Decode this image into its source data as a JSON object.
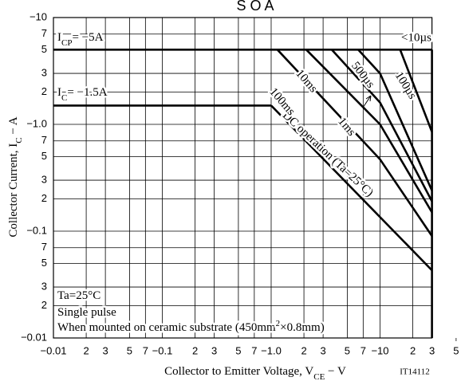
{
  "chart_data": {
    "type": "line",
    "title": "S O A",
    "x_label": [
      "Collector to Emitter Voltage, V",
      "CE",
      " − V"
    ],
    "y_label": [
      "Collector Current, I",
      "C",
      " − A"
    ],
    "code": "IT14112",
    "log_x": true,
    "log_y": true,
    "grid": true,
    "color": "#000000",
    "xlim": [
      0.01,
      30
    ],
    "ylim": [
      0.01,
      10
    ],
    "xticks": [
      {
        "value": 0.01,
        "label": "−0.01"
      },
      {
        "value": 0.02,
        "label": "2"
      },
      {
        "value": 0.03,
        "label": "3"
      },
      {
        "value": 0.05,
        "label": "5"
      },
      {
        "value": 0.07,
        "label": "7"
      },
      {
        "value": 0.1,
        "label": "−0.1"
      },
      {
        "value": 0.2,
        "label": "2"
      },
      {
        "value": 0.3,
        "label": "3"
      },
      {
        "value": 0.5,
        "label": "5"
      },
      {
        "value": 0.7,
        "label": "7"
      },
      {
        "value": 1,
        "label": "−1.0"
      },
      2,
      3,
      5,
      7,
      {
        "value": 10,
        "label": "−10"
      },
      {
        "value": 20,
        "label": "2"
      },
      {
        "value": 30,
        "label": "3"
      },
      {
        "value": 50,
        "label": "5"
      }
    ],
    "yticks": [
      {
        "value": 10,
        "label": "−10"
      },
      7,
      5,
      3,
      2,
      {
        "value": 1,
        "label": "−1.0"
      },
      {
        "value": 0.7,
        "label": "7"
      },
      {
        "value": 0.5,
        "label": "5"
      },
      {
        "value": 0.3,
        "label": "3"
      },
      {
        "value": 0.2,
        "label": "2"
      },
      {
        "value": 0.1,
        "label": "−0.1"
      },
      {
        "value": 0.07,
        "label": "7"
      },
      {
        "value": 0.05,
        "label": "5"
      },
      {
        "value": 0.03,
        "label": "3"
      },
      {
        "value": 0.02,
        "label": "2"
      },
      {
        "value": 0.01,
        "label": "−0.01"
      }
    ],
    "annotations": [
      [
        "Ta=25°C"
      ],
      [
        "Single pulse"
      ],
      [
        "When mounted on ceramic substrate (450mm",
        "2",
        "×0.8mm)"
      ]
    ],
    "series": [
      {
        "name": "<10µs",
        "x": [
          30,
          30
        ],
        "values": [
          5,
          0.01
        ]
      },
      {
        "label": [
          "I",
          "CP",
          "= −5A"
        ],
        "x": [
          0.01,
          30
        ],
        "values": [
          5,
          5
        ]
      },
      {
        "label": [
          "I",
          "C",
          "= −1.5A"
        ],
        "x": [
          0.01,
          1.0
        ],
        "values": [
          1.5,
          1.5
        ]
      },
      {
        "name": "DC operation (Ta=25°C)",
        "x": [
          1.0,
          30
        ],
        "values": [
          1.5,
          0.043
        ]
      },
      {
        "name": "100ms",
        "x": [
          1.14,
          10,
          30
        ],
        "values": [
          5,
          0.47,
          0.09
        ]
      },
      {
        "name": "10ms",
        "x": [
          2.1,
          10,
          30
        ],
        "values": [
          5,
          1.0,
          0.15
        ]
      },
      {
        "name": "1ms",
        "x": [
          3.6,
          10,
          30
        ],
        "values": [
          5,
          1.6,
          0.19
        ]
      },
      {
        "name": "500µs",
        "x": [
          6.3,
          10,
          30
        ],
        "values": [
          5,
          3.0,
          0.24
        ]
      },
      {
        "name": "100µs",
        "x": [
          15.3,
          30
        ],
        "values": [
          5,
          0.85
        ]
      }
    ]
  }
}
